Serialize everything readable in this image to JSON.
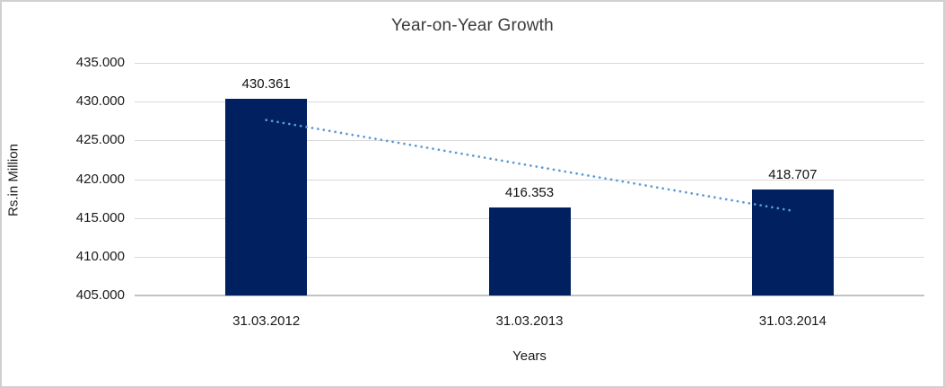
{
  "chart_data": {
    "type": "bar",
    "title": "Year-on-Year Growth",
    "xlabel": "Years",
    "ylabel": "Rs.in Million",
    "categories": [
      "31.03.2012",
      "31.03.2013",
      "31.03.2014"
    ],
    "values": [
      430.361,
      416.353,
      418.707
    ],
    "data_labels": [
      "430.361",
      "416.353",
      "418.707"
    ],
    "ylim": [
      405,
      435
    ],
    "ytick_step": 5,
    "ytick_labels": [
      "405.000",
      "410.000",
      "415.000",
      "420.000",
      "425.000",
      "430.000",
      "435.000"
    ],
    "grid": true,
    "legend": "none",
    "bar_color": "#002060",
    "trendline": {
      "type": "linear",
      "style": "dotted",
      "color": "#5b9bd5",
      "start_value": 427.63,
      "end_value": 415.98
    }
  }
}
